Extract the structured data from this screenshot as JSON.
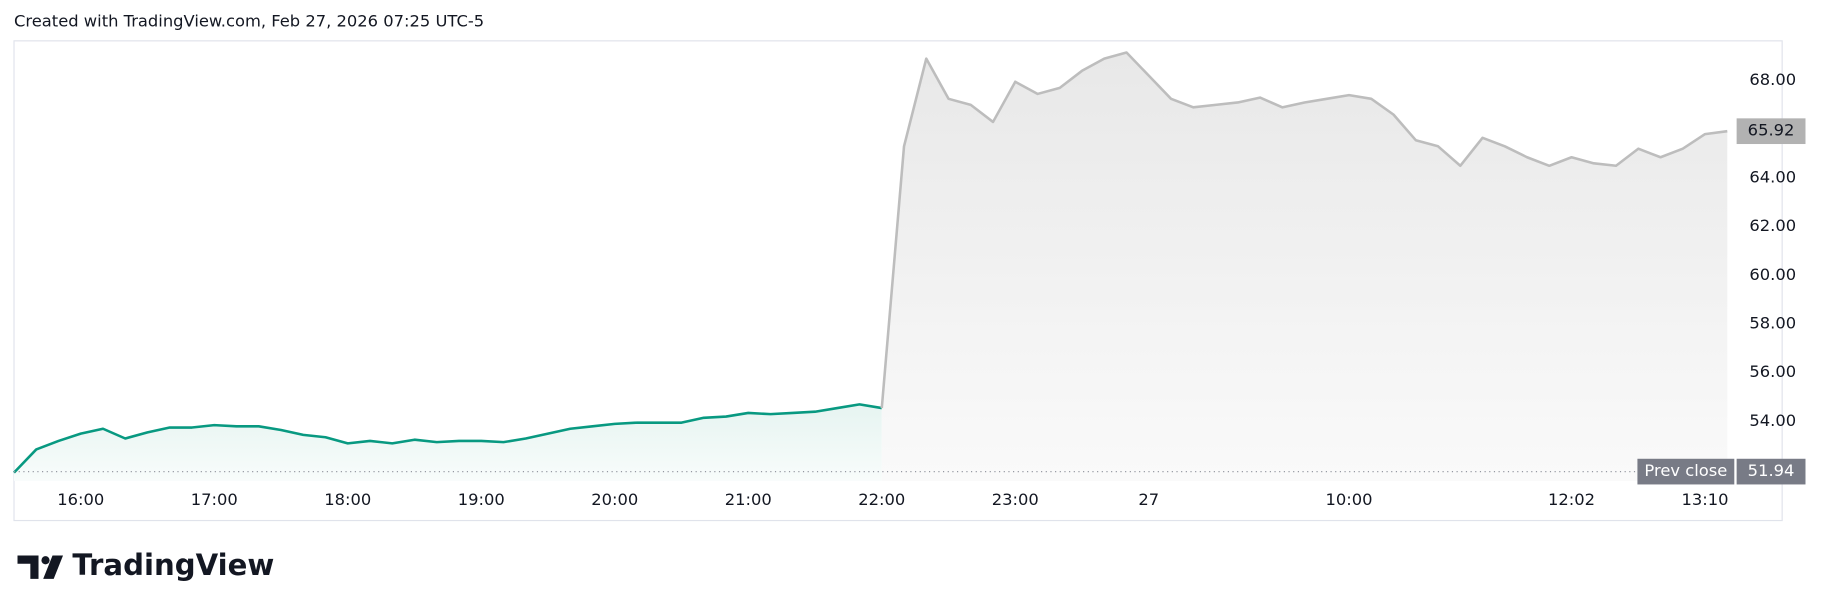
{
  "header": "Created with TradingView.com, Feb 27, 2026 07:25 UTC-5",
  "brand": "TradingView",
  "chart_data": {
    "type": "line",
    "categories": [
      null,
      null,
      null,
      "16:00",
      null,
      null,
      null,
      null,
      null,
      "17:00",
      null,
      null,
      null,
      null,
      null,
      "18:00",
      null,
      null,
      null,
      null,
      null,
      "19:00",
      null,
      null,
      null,
      null,
      null,
      "20:00",
      null,
      null,
      null,
      null,
      null,
      "21:00",
      null,
      null,
      null,
      null,
      null,
      "22:00",
      null,
      null,
      null,
      null,
      null,
      "23:00",
      null,
      null,
      null,
      null,
      null,
      "27",
      null,
      null,
      null,
      null,
      null,
      null,
      null,
      null,
      "10:00",
      null,
      null,
      null,
      null,
      null,
      null,
      null,
      null,
      null,
      "12:02",
      null,
      null,
      null,
      null,
      null,
      "13:10",
      null
    ],
    "series": [
      {
        "color": "#089981",
        "values": [
          51.9,
          52.85,
          53.2,
          53.5,
          53.7,
          53.3,
          53.55,
          53.75,
          53.75,
          53.85,
          53.8,
          53.8,
          53.65,
          53.45,
          53.35,
          53.1,
          53.2,
          53.1,
          53.25,
          53.15,
          53.2,
          53.2,
          53.15,
          53.3,
          53.5,
          53.7,
          53.8,
          53.9,
          53.95,
          53.95,
          53.95,
          54.15,
          54.2,
          54.35,
          54.3,
          54.35,
          54.4,
          54.55,
          54.7,
          54.55,
          null,
          null,
          null,
          null,
          null,
          null,
          null,
          null,
          null,
          null,
          null,
          null,
          null,
          null,
          null,
          null,
          null,
          null,
          null,
          null,
          null,
          null,
          null,
          null,
          null,
          null,
          null,
          null,
          null,
          null,
          null,
          null,
          null,
          null,
          null,
          null,
          null,
          null
        ]
      },
      {
        "color": "#bdbdbd",
        "values": [
          null,
          null,
          null,
          null,
          null,
          null,
          null,
          null,
          null,
          null,
          null,
          null,
          null,
          null,
          null,
          null,
          null,
          null,
          null,
          null,
          null,
          null,
          null,
          null,
          null,
          null,
          null,
          null,
          null,
          null,
          null,
          null,
          null,
          null,
          null,
          null,
          null,
          null,
          null,
          54.55,
          65.3,
          68.9,
          67.25,
          67.0,
          66.3,
          67.95,
          67.45,
          67.7,
          68.4,
          68.9,
          69.15,
          68.2,
          67.25,
          66.9,
          67.0,
          67.1,
          67.3,
          66.9,
          67.1,
          67.25,
          67.4,
          67.25,
          66.6,
          65.55,
          65.3,
          64.5,
          65.65,
          65.3,
          64.85,
          64.5,
          64.85,
          64.6,
          64.5,
          65.2,
          64.85,
          65.2,
          65.8,
          65.92
        ]
      }
    ],
    "ylim": [
      51.56,
      69.63
    ],
    "yticks": [
      {
        "value": 54,
        "label": "54.00"
      },
      {
        "value": 56,
        "label": "56.00"
      },
      {
        "value": 58,
        "label": "58.00"
      },
      {
        "value": 60,
        "label": "60.00"
      },
      {
        "value": 62,
        "label": "62.00"
      },
      {
        "value": 64,
        "label": "64.00"
      },
      {
        "value": 68,
        "label": "68.00"
      }
    ],
    "last_price": 65.92,
    "prev_close_label": "Prev close",
    "prev_close": 51.94
  }
}
